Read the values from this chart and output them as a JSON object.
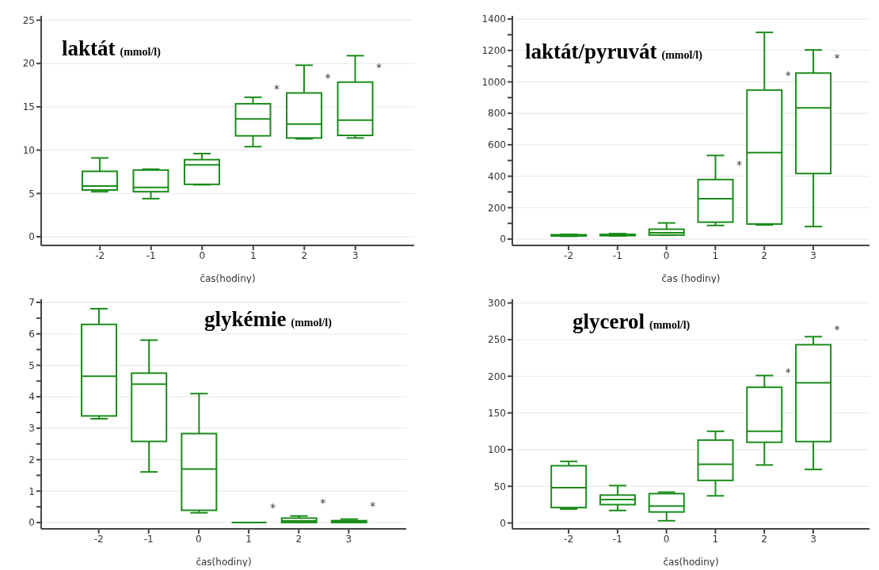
{
  "chart_data": [
    {
      "type": "box",
      "title": "laktát",
      "subtitle": "(mmol/l)",
      "xlabel": "čas(hodiny)",
      "categories": [
        "-2",
        "-1",
        "0",
        "1",
        "2",
        "3"
      ],
      "ylim": [
        -1,
        25.5
      ],
      "yticks": [
        0,
        5,
        10,
        15,
        20,
        25
      ],
      "grid": "y",
      "series": [
        {
          "color": "#1a8c1a",
          "boxes": [
            {
              "low": 5.2,
              "q1": 5.4,
              "median": 5.85,
              "q3": 7.55,
              "high": 9.1
            },
            {
              "low": 4.4,
              "q1": 5.2,
              "median": 5.7,
              "q3": 7.7,
              "high": 7.8
            },
            {
              "low": 6.0,
              "q1": 6.05,
              "median": 8.3,
              "q3": 8.9,
              "high": 9.6
            },
            {
              "low": 10.4,
              "q1": 11.65,
              "median": 13.6,
              "q3": 15.35,
              "high": 16.1
            },
            {
              "low": 11.3,
              "q1": 11.4,
              "median": 13.0,
              "q3": 16.6,
              "high": 19.8
            },
            {
              "low": 11.4,
              "q1": 11.7,
              "median": 13.45,
              "q3": 17.85,
              "high": 20.9
            }
          ]
        }
      ],
      "annotations": [
        "*",
        "*",
        "*"
      ]
    },
    {
      "type": "box",
      "title": "laktát/pyruvát",
      "subtitle": "(mmol/l)",
      "xlabel": "čas (hodiny)",
      "categories": [
        "-2",
        "-1",
        "0",
        "1",
        "2",
        "3"
      ],
      "ylim": [
        -40,
        1420
      ],
      "yticks": [
        0,
        {
          "value": 100,
          "label": null
        },
        200,
        {
          "value": 300,
          "label": null
        },
        400,
        {
          "value": 500,
          "label": null
        },
        600,
        {
          "value": 700,
          "label": null
        },
        800,
        {
          "value": 900,
          "label": null
        },
        1000,
        {
          "value": 1100,
          "label": null
        },
        1200,
        {
          "value": 1300,
          "label": null
        },
        1400
      ],
      "grid": "y",
      "series": [
        {
          "color": "#1a8c1a",
          "boxes": [
            {
              "low": 18,
              "q1": 20,
              "median": 25,
              "q3": 28,
              "high": 30
            },
            {
              "low": 20,
              "q1": 22,
              "median": 27,
              "q3": 30,
              "high": 35
            },
            {
              "low": 25,
              "q1": 26,
              "median": 40,
              "q3": 63,
              "high": 103
            },
            {
              "low": 87,
              "q1": 108,
              "median": 257,
              "q3": 379,
              "high": 532
            },
            {
              "low": 90,
              "q1": 96,
              "median": 550,
              "q3": 948,
              "high": 1315
            },
            {
              "low": 80,
              "q1": 417,
              "median": 835,
              "q3": 1056,
              "high": 1203
            }
          ]
        }
      ],
      "annotations": [
        "*",
        "*",
        "*"
      ]
    },
    {
      "type": "box",
      "title": "glykémie",
      "subtitle": "(mmol/l)",
      "xlabel": "čas(hodiny)",
      "categories": [
        "-2",
        "-1",
        "0",
        "1",
        "2",
        "3"
      ],
      "ylim": [
        -0.2,
        7.1
      ],
      "yticks": [
        0,
        {
          "value": 0.5,
          "label": null
        },
        1,
        {
          "value": 1.5,
          "label": null
        },
        2,
        {
          "value": 2.5,
          "label": null
        },
        3,
        {
          "value": 3.5,
          "label": null
        },
        4,
        {
          "value": 4.5,
          "label": null
        },
        5,
        {
          "value": 5.5,
          "label": null
        },
        6,
        {
          "value": 6.5,
          "label": null
        },
        7
      ],
      "grid": "y",
      "series": [
        {
          "color": "#1a8c1a",
          "boxes": [
            {
              "low": 3.3,
              "q1": 3.39,
              "median": 4.65,
              "q3": 6.3,
              "high": 6.8
            },
            {
              "low": 1.61,
              "q1": 2.58,
              "median": 4.4,
              "q3": 4.75,
              "high": 5.8
            },
            {
              "low": 0.31,
              "q1": 0.39,
              "median": 1.7,
              "q3": 2.83,
              "high": 4.1
            },
            {
              "low": 0,
              "q1": 0,
              "median": 0,
              "q3": 0,
              "high": 0
            },
            {
              "low": 0,
              "q1": 0,
              "median": 0.05,
              "q3": 0.14,
              "high": 0.21
            },
            {
              "low": 0,
              "q1": 0,
              "median": 0.03,
              "q3": 0.06,
              "high": 0.11
            }
          ]
        }
      ],
      "annotations": [
        "*",
        "*",
        "*"
      ]
    },
    {
      "type": "box",
      "title": "glycerol",
      "subtitle": "(mmol/l)",
      "xlabel": "čas(hodiny)",
      "categories": [
        "-2",
        "-1",
        "0",
        "1",
        "2",
        "3"
      ],
      "ylim": [
        -8,
        305
      ],
      "yticks": [
        0,
        50,
        100,
        150,
        200,
        250,
        300
      ],
      "grid": "y",
      "series": [
        {
          "color": "#1a8c1a",
          "boxes": [
            {
              "low": 19,
              "q1": 21,
              "median": 48,
              "q3": 78,
              "high": 84
            },
            {
              "low": 17,
              "q1": 25,
              "median": 32,
              "q3": 38,
              "high": 51
            },
            {
              "low": 3,
              "q1": 15,
              "median": 23,
              "q3": 40,
              "high": 42
            },
            {
              "low": 37,
              "q1": 58,
              "median": 80,
              "q3": 113,
              "high": 125
            },
            {
              "low": 79,
              "q1": 110,
              "median": 125,
              "q3": 185,
              "high": 201
            },
            {
              "low": 73,
              "q1": 111,
              "median": 191,
              "q3": 243,
              "high": 254
            }
          ]
        }
      ],
      "annotations": [
        "*",
        "*"
      ]
    }
  ]
}
